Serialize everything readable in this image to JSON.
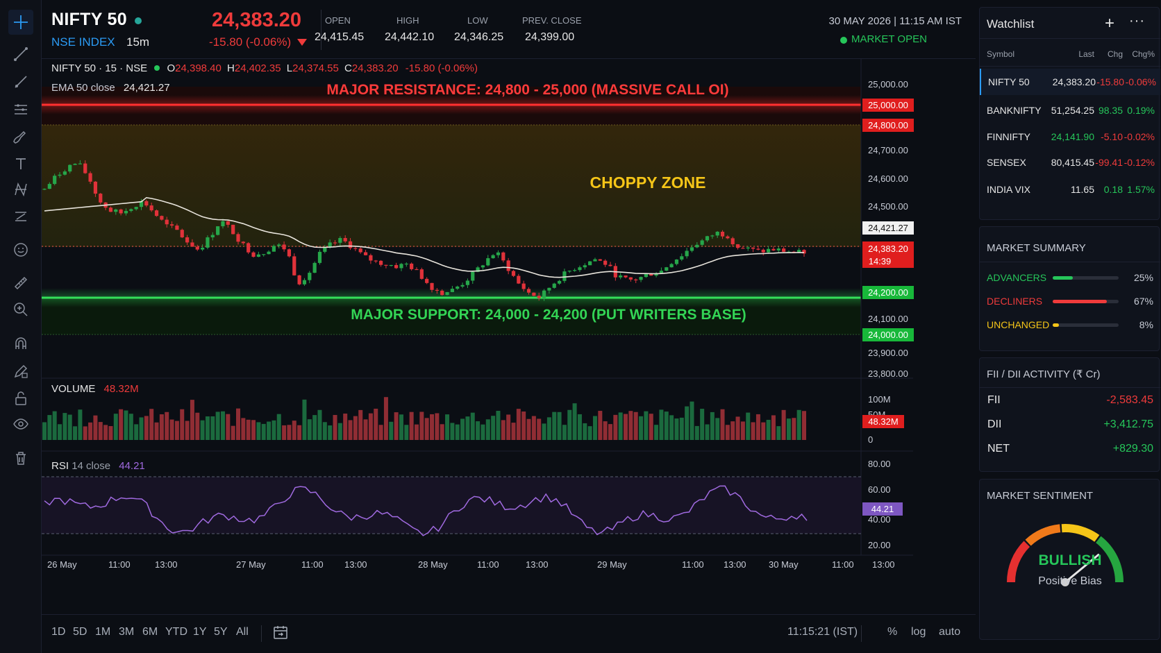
{
  "header": {
    "symbol": "NIFTY 50",
    "exchange_label": "NSE INDEX",
    "timeframe": "15m",
    "last_price": "24,383.20",
    "change": "-15.80 (-0.06%)",
    "ohlc": [
      {
        "label": "OPEN",
        "value": "24,415.45"
      },
      {
        "label": "HIGH",
        "value": "24,442.10"
      },
      {
        "label": "LOW",
        "value": "24,346.25"
      },
      {
        "label": "PREV. CLOSE",
        "value": "24,399.00"
      }
    ],
    "datetime": "30 MAY 2026 | 11:15 AM IST",
    "market_status": "MARKET OPEN"
  },
  "toolbar": {
    "icons": [
      "crosshair-icon",
      "trend-line-icon",
      "ray-line-icon",
      "fib-retracement-icon",
      "brush-icon",
      "text-icon",
      "pattern-icon",
      "prediction-icon",
      "emoji-icon",
      "ruler-icon",
      "zoom-in-icon",
      "magnet-icon",
      "lock-drawing-icon",
      "lock-icon",
      "eye-icon",
      "trash-icon"
    ]
  },
  "chart": {
    "legend": {
      "symbol_line": "NIFTY 50 · 15 · NSE",
      "o_label": "O",
      "o_value": "24,398.40",
      "h_label": "H",
      "h_value": "24,402.35",
      "l_label": "L",
      "l_value": "24,374.55",
      "c_label": "C",
      "c_value": "24,383.20",
      "change": "-15.80 (-0.06%)",
      "ema_label": "EMA 50 close",
      "ema_value": "24,421.27"
    },
    "annotations": {
      "resistance": "MAJOR RESISTANCE: 24,800 - 25,000 (MASSIVE CALL OI)",
      "choppy": "CHOPPY ZONE",
      "support": "MAJOR SUPPORT: 24,000 - 24,200 (PUT WRITERS BASE)"
    },
    "price_axis": [
      "25,000.00",
      "24,700.00",
      "24,600.00",
      "24,500.00",
      "24,100.00",
      "23,900.00",
      "23,800.00"
    ],
    "price_badges": {
      "res_top": "25,000.00",
      "res_bot": "24,800.00",
      "ema": "24,421.27",
      "last": "24,383.20",
      "countdown": "14:39",
      "sup_top": "24,200.00",
      "sup_bot": "24,000.00"
    },
    "volume": {
      "label": "VOLUME",
      "value": "48.32M",
      "axis": [
        "100M",
        "50M",
        "0"
      ],
      "badge": "48.32M"
    },
    "rsi": {
      "label": "RSI",
      "params": "14 close",
      "value": "44.21",
      "axis": [
        "80.00",
        "60.00",
        "40.00",
        "20.00"
      ],
      "badge": "44.21"
    },
    "time_axis": [
      "26 May",
      "11:00",
      "13:00",
      "27 May",
      "11:00",
      "13:00",
      "28 May",
      "11:00",
      "13:00",
      "29 May",
      "11:00",
      "13:00",
      "30 May",
      "11:00",
      "13:00"
    ]
  },
  "chart_data": {
    "type": "candlestick",
    "title": "NIFTY 50 · 15 · NSE",
    "ylabel": "",
    "ylim": [
      23750,
      25080
    ],
    "resistance_zone": [
      24800,
      25000
    ],
    "support_zone": [
      24000,
      24200
    ],
    "last_price": 24383.2,
    "ema50_last": 24421.27,
    "approx_close_path": [
      24650,
      24700,
      24740,
      24760,
      24700,
      24600,
      24560,
      24550,
      24580,
      24600,
      24550,
      24500,
      24480,
      24430,
      24400,
      24450,
      24520,
      24480,
      24420,
      24380,
      24390,
      24420,
      24400,
      24260,
      24300,
      24380,
      24420,
      24440,
      24410,
      24370,
      24350,
      24340,
      24330,
      24340,
      24300,
      24250,
      24220,
      24230,
      24260,
      24300,
      24350,
      24390,
      24330,
      24260,
      24220,
      24200,
      24250,
      24290,
      24320,
      24340,
      24360,
      24340,
      24290,
      24270,
      24280,
      24300,
      24310,
      24350,
      24380,
      24420,
      24440,
      24470,
      24460,
      24410,
      24400,
      24390,
      24400,
      24395,
      24390,
      24383
    ],
    "volume_unit": "M",
    "volume_last": 48.32,
    "rsi_last": 44.21
  },
  "bottom": {
    "ranges": [
      "1D",
      "5D",
      "1M",
      "3M",
      "6M",
      "YTD",
      "1Y",
      "5Y",
      "All"
    ],
    "clock": "11:15:21 (IST)",
    "percent": "%",
    "log": "log",
    "auto": "auto"
  },
  "watchlist": {
    "title": "Watchlist",
    "columns": [
      "Symbol",
      "Last",
      "Chg",
      "Chg%"
    ],
    "rows": [
      {
        "symbol": "NIFTY 50",
        "last": "24,383.20",
        "chg": "-15.80",
        "pct": "-0.06%",
        "dir": "neg"
      },
      {
        "symbol": "BANKNIFTY",
        "last": "51,254.25",
        "chg": "98.35",
        "pct": "0.19%",
        "dir": "pos"
      },
      {
        "symbol": "FINNIFTY",
        "last": "24,141.90",
        "chg": "-5.10",
        "pct": "-0.02%",
        "dir": "neg"
      },
      {
        "symbol": "SENSEX",
        "last": "80,415.45",
        "chg": "-99.41",
        "pct": "-0.12%",
        "dir": "neg"
      },
      {
        "symbol": "INDIA VIX",
        "last": "11.65",
        "chg": "0.18",
        "pct": "1.57%",
        "dir": "pos"
      }
    ]
  },
  "market_summary": {
    "title": "MARKET SUMMARY",
    "items": [
      {
        "label": "ADVANCERS",
        "pct": "25%",
        "fraction": 0.25,
        "color": "#26c65a"
      },
      {
        "label": "DECLINERS",
        "pct": "67%",
        "fraction": 0.67,
        "color": "#ef3b3b"
      },
      {
        "label": "UNCHANGED",
        "pct": "8%",
        "fraction": 0.08,
        "color": "#f5c518"
      }
    ]
  },
  "fii_dii": {
    "title": "FII / DII ACTIVITY (₹ Cr)",
    "rows": [
      {
        "label": "FII",
        "value": "-2,583.45",
        "dir": "neg"
      },
      {
        "label": "DII",
        "value": "+3,412.75",
        "dir": "pos"
      },
      {
        "label": "NET",
        "value": "+829.30",
        "dir": "pos"
      }
    ]
  },
  "sentiment": {
    "title": "MARKET SENTIMENT",
    "verdict": "BULLISH",
    "sub": "Positive Bias",
    "needle_fraction": 0.78
  }
}
